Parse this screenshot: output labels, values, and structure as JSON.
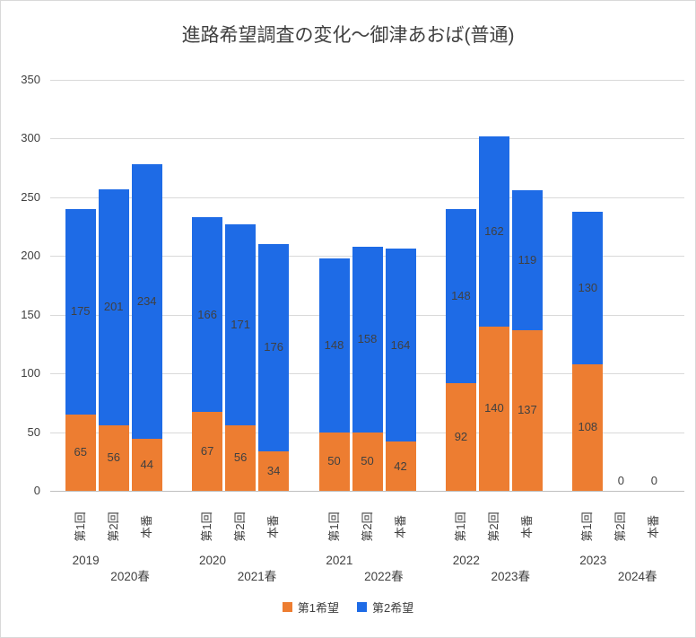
{
  "chart_data": {
    "type": "bar",
    "stacked": true,
    "title": "進路希望調査の変化～御津あおば(普通)",
    "xlabel": "",
    "ylabel": "",
    "ylim": [
      0,
      350
    ],
    "y_tick_step": 50,
    "grid": true,
    "legend_position": "bottom",
    "categories_level1": [
      "第1回",
      "第2回",
      "本番"
    ],
    "group_labels": [
      [
        "2019",
        "2020春"
      ],
      [
        "2020",
        "2021春"
      ],
      [
        "2021",
        "2022春"
      ],
      [
        "2022",
        "2023春"
      ],
      [
        "2023",
        "2024春"
      ]
    ],
    "series": [
      {
        "name": "第1希望",
        "color": "#ED7D31",
        "values": [
          [
            65,
            56,
            44
          ],
          [
            67,
            56,
            34
          ],
          [
            50,
            50,
            42
          ],
          [
            92,
            140,
            137
          ],
          [
            108,
            0,
            0
          ]
        ]
      },
      {
        "name": "第2希望",
        "color": "#1E6BE6",
        "values": [
          [
            175,
            201,
            234
          ],
          [
            166,
            171,
            176
          ],
          [
            148,
            158,
            164
          ],
          [
            148,
            162,
            119
          ],
          [
            130,
            0,
            0
          ]
        ]
      }
    ],
    "zero_label": "0"
  }
}
